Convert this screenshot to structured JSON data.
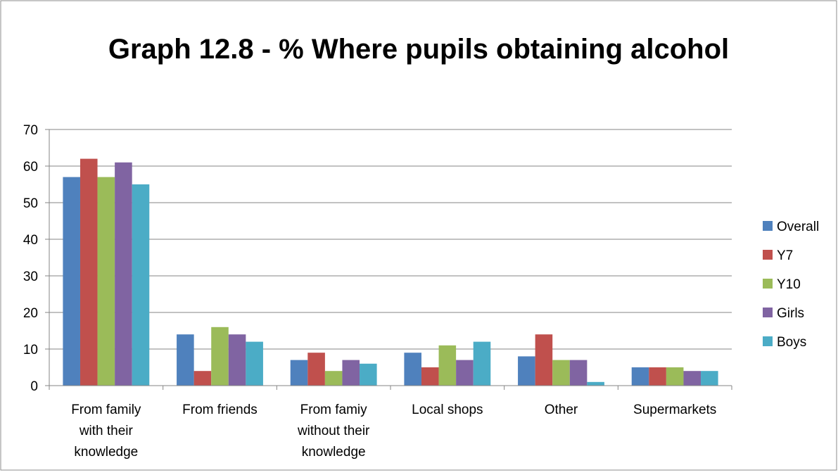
{
  "chart_data": {
    "type": "bar",
    "title": "Graph 12.8 -  % Where pupils obtaining alcohol",
    "xlabel": "",
    "ylabel": "",
    "ylim": [
      0,
      70
    ],
    "yticks": [
      0,
      10,
      20,
      30,
      40,
      50,
      60,
      70
    ],
    "categories": [
      [
        "From family",
        "with their",
        "knowledge"
      ],
      [
        "From friends"
      ],
      [
        "From famiy",
        "without their",
        "knowledge"
      ],
      [
        "Local shops"
      ],
      [
        "Other"
      ],
      [
        "Supermarkets"
      ]
    ],
    "series": [
      {
        "name": "Overall",
        "color": "#4f81bd",
        "values": [
          57,
          14,
          7,
          9,
          8,
          5
        ]
      },
      {
        "name": "Y7",
        "color": "#c0504d",
        "values": [
          62,
          4,
          9,
          5,
          14,
          5
        ]
      },
      {
        "name": "Y10",
        "color": "#9bbb59",
        "values": [
          57,
          16,
          4,
          11,
          7,
          5
        ]
      },
      {
        "name": "Girls",
        "color": "#8064a2",
        "values": [
          61,
          14,
          7,
          7,
          7,
          4
        ]
      },
      {
        "name": "Boys",
        "color": "#4bacc6",
        "values": [
          55,
          12,
          6,
          12,
          1,
          4
        ]
      }
    ],
    "grid": true,
    "legend_position": "right"
  }
}
